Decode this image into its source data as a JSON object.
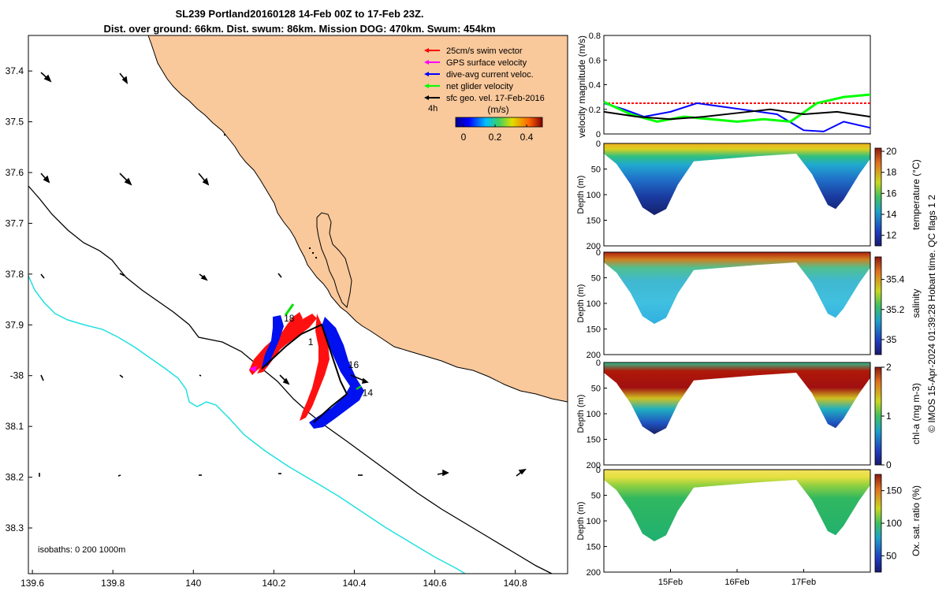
{
  "title_line1": "SL239 Portland20160128 14-Feb 00Z to 17-Feb 23Z.",
  "title_line2": "Dist. over ground: 66km. Dist. swum: 86km. Mission DOG: 470km. Swum: 454km",
  "map": {
    "lat_ticks": [
      "37.4",
      "37.5",
      "37.6",
      "37.7",
      "37.8",
      "37.9",
      "-38",
      "38.1",
      "38.2",
      "38.3"
    ],
    "lat_values": [
      -37.4,
      -37.5,
      -37.6,
      -37.7,
      -37.8,
      -37.9,
      -38.0,
      -38.1,
      -38.2,
      -38.3
    ],
    "lon_ticks": [
      "139.6",
      "139.8",
      "140",
      "140.2",
      "140.4",
      "140.6",
      "140.8"
    ],
    "lon_values": [
      139.6,
      139.8,
      140.0,
      140.2,
      140.4,
      140.6,
      140.8
    ],
    "lon_range": [
      139.59,
      140.93
    ],
    "lat_range": [
      -37.33,
      -38.39
    ],
    "legend": [
      {
        "label": "25cm/s swim vector",
        "color": "#ff0000"
      },
      {
        "label": "GPS surface velocity",
        "color": "#ff00ff"
      },
      {
        "label": "dive-avg current veloc.",
        "color": "#0000ff"
      },
      {
        "label": "net glider velocity",
        "color": "#00ff00"
      },
      {
        "label": "sfc geo. vel. 17-Feb-2016",
        "color": "#000000"
      }
    ],
    "legend_4h": "4h",
    "colorbar_title": "(m/s)",
    "colorbar_ticks": [
      "0",
      "0.2",
      "0.4"
    ],
    "colorbar_values": [
      0,
      0.2,
      0.4
    ],
    "colorbar_range": [
      -0.05,
      0.5
    ],
    "isobaths_label": "isobaths: 0   200  1000m",
    "labels": [
      {
        "text": "18",
        "lon": 140.225,
        "lat": -37.893
      },
      {
        "text": "1",
        "lon": 140.285,
        "lat": -37.94
      },
      {
        "text": "16",
        "lon": 140.385,
        "lat": -37.985
      },
      {
        "text": "14",
        "lon": 140.42,
        "lat": -38.04
      }
    ]
  },
  "velocity_panel": {
    "ylabel": "velocity magnitude (m/s)",
    "yticks": [
      "0",
      "0.2",
      "0.4",
      "0.6",
      "0.8"
    ],
    "ytick_values": [
      0,
      0.2,
      0.4,
      0.6,
      0.8
    ],
    "ylim": [
      0,
      0.8
    ]
  },
  "sections": [
    {
      "name": "temperature",
      "cbar_label": "temperature (°C)",
      "cbar_ticks": [
        "12",
        "14",
        "16",
        "18",
        "20"
      ],
      "cbar_values": [
        12,
        14,
        16,
        18,
        20
      ],
      "cbar_range": [
        11,
        20.3
      ]
    },
    {
      "name": "salinity",
      "cbar_label": "salinity",
      "cbar_ticks": [
        "35",
        "35.2",
        "35.4"
      ],
      "cbar_values": [
        35.0,
        35.2,
        35.4
      ],
      "cbar_range": [
        34.9,
        35.55
      ]
    },
    {
      "name": "chla",
      "cbar_label": "chl-a (mg m-3)",
      "cbar_ticks": [
        "0",
        "1",
        "2"
      ],
      "cbar_values": [
        0,
        1,
        2
      ],
      "cbar_range": [
        0,
        2
      ]
    },
    {
      "name": "oxygen",
      "cbar_label": "Ox. sat. ratio (%)",
      "cbar_ticks": [
        "50",
        "100",
        "150"
      ],
      "cbar_values": [
        50,
        100,
        150
      ],
      "cbar_range": [
        25,
        175
      ]
    }
  ],
  "depth_ylabel": "Depth (m)",
  "depth_ticks": [
    "0",
    "50",
    "100",
    "150",
    "200"
  ],
  "depth_values": [
    0,
    50,
    100,
    150,
    200
  ],
  "date_ticks": [
    "15Feb",
    "16Feb",
    "17Feb"
  ],
  "date_values": [
    1,
    2,
    3
  ],
  "time_range": [
    0,
    4
  ],
  "credit": "© IMOS 15-Apr-2024 01:39:28 Hobart time. QC flags 1  2",
  "chart_data": {
    "type": "multi-panel oceanographic glider plot",
    "velocity_series": [
      {
        "name": "25cm/s swim vector",
        "color": "#ff0000",
        "values_t": [
          0,
          0.5,
          1,
          1.5,
          2,
          2.5,
          3,
          3.5,
          4
        ],
        "values": [
          0.25,
          0.25,
          0.25,
          0.25,
          0.25,
          0.25,
          0.25,
          0.25,
          0.25
        ]
      },
      {
        "name": "dive-avg current veloc.",
        "color": "#0000ff",
        "values_t": [
          0,
          0.3,
          0.6,
          1,
          1.4,
          1.8,
          2.2,
          2.6,
          3,
          3.3,
          3.6,
          4
        ],
        "values": [
          0.25,
          0.2,
          0.14,
          0.18,
          0.25,
          0.22,
          0.19,
          0.16,
          0.03,
          0.02,
          0.1,
          0.05
        ]
      },
      {
        "name": "net glider velocity",
        "color": "#00ff00",
        "values_t": [
          0,
          0.4,
          0.8,
          1.2,
          1.6,
          2,
          2.4,
          2.8,
          3.2,
          3.6,
          4
        ],
        "values": [
          0.26,
          0.16,
          0.1,
          0.14,
          0.12,
          0.1,
          0.12,
          0.1,
          0.25,
          0.3,
          0.32
        ]
      },
      {
        "name": "sfc geo. vel.",
        "color": "#000000",
        "values_t": [
          0,
          0.5,
          1,
          1.5,
          2,
          2.5,
          3,
          3.5,
          4
        ],
        "values": [
          0.18,
          0.14,
          0.12,
          0.14,
          0.17,
          0.2,
          0.16,
          0.18,
          0.14
        ]
      }
    ]
  }
}
